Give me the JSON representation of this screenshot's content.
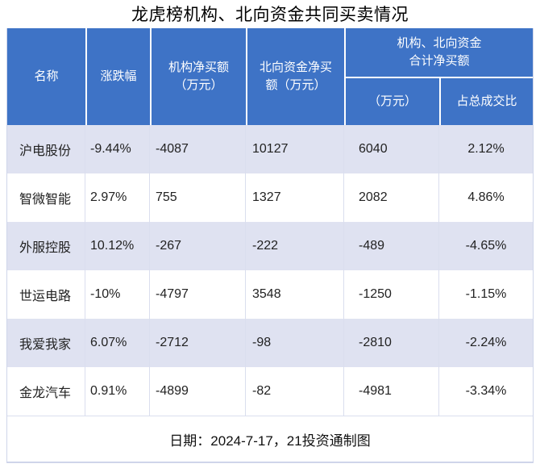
{
  "title": "龙虎榜机构、北向资金共同买卖情况",
  "header": {
    "name": "名称",
    "change": "涨跌幅",
    "inst": "机构净买额\n（万元）",
    "north": "北向资金净买\n额（万元）",
    "combined": "机构、北向资金\n合计净买额",
    "combined_amount": "（万元）",
    "combined_ratio": "占总成交比"
  },
  "footer_note": "日期：2024-7-17，21投资通制图",
  "colors": {
    "header_bg": "#3e73c6",
    "stripe_bg": "#dfe2f1",
    "grid_line": "#dadeee",
    "outer_border": "#cfd5ea",
    "header_text": "#ffffff"
  },
  "chart_data": {
    "type": "table",
    "title": "龙虎榜机构、北向资金共同买卖情况",
    "columns": [
      "名称",
      "涨跌幅",
      "机构净买额（万元）",
      "北向资金净买额（万元）",
      "机构、北向资金合计净买额（万元）",
      "机构、北向资金合计净买额占总成交比"
    ],
    "rows": [
      [
        "沪电股份",
        "-9.44%",
        -4087,
        10127,
        6040,
        "2.12%"
      ],
      [
        "智微智能",
        "2.97%",
        755,
        1327,
        2082,
        "4.86%"
      ],
      [
        "外服控股",
        "10.12%",
        -267,
        -222,
        -489,
        "-4.65%"
      ],
      [
        "世运电路",
        "-10%",
        -4797,
        3548,
        -1250,
        "-1.15%"
      ],
      [
        "我爱我家",
        "6.07%",
        -2712,
        -98,
        -2810,
        "-2.24%"
      ],
      [
        "金龙汽车",
        "0.91%",
        -4899,
        -82,
        -4981,
        "-3.34%"
      ]
    ],
    "footer": "日期：2024-7-17，21投资通制图",
    "layout": {
      "stripe_rows": "odd rows shaded",
      "header_levels": 2,
      "merged_header_spans_last_two_columns": true
    }
  }
}
